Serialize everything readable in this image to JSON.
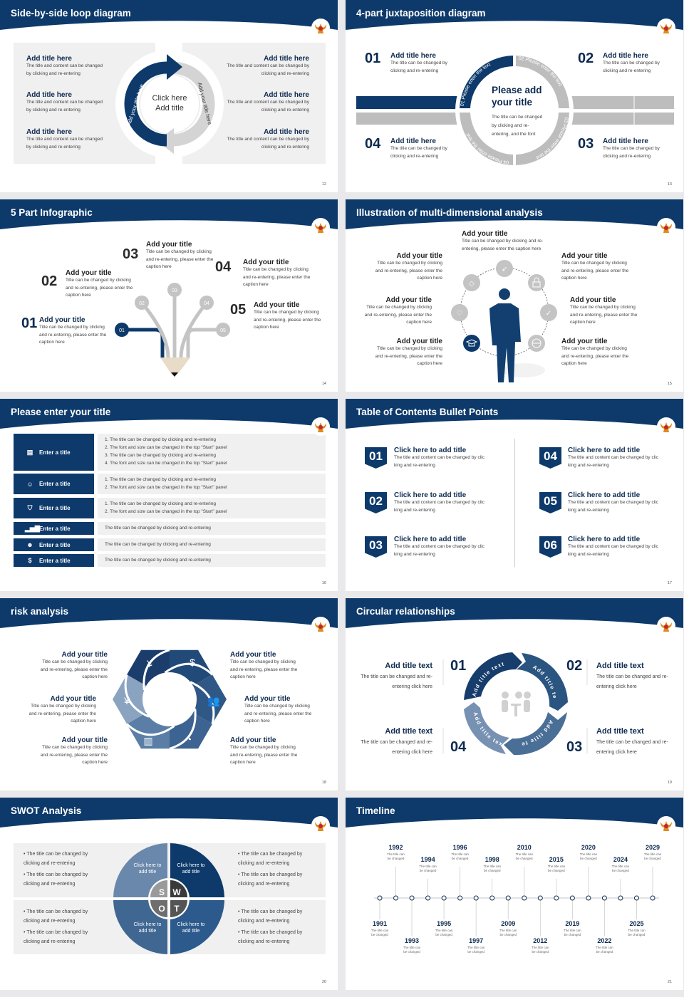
{
  "colors": {
    "navy": "#0d3a6b",
    "grey": "#bdbdbd",
    "panel": "#f0f0f0"
  },
  "loop": {
    "title": "Side-by-side loop diagram",
    "page": "12",
    "center": "Click here Add title",
    "arc_left": "Add your title here",
    "arc_right": "Add your title here",
    "items": [
      {
        "title": "Add title here",
        "body": "The title and content can be changed by clicking and re-entering"
      },
      {
        "title": "Add title here",
        "body": "The title and content can be changed by clicking and re-entering"
      },
      {
        "title": "Add title here",
        "body": "The title and content can be changed by clicking and re-entering"
      },
      {
        "title": "Add title here",
        "body": "The title and content can be changed by clicking and re-entering"
      },
      {
        "title": "Add title here",
        "body": "The title and content can be changed by clicking and re-entering"
      },
      {
        "title": "Add title here",
        "body": "The title and content can be changed by clicking and re-entering"
      }
    ]
  },
  "juxta": {
    "title": "4-part juxtaposition diagram",
    "page": "13",
    "center_title": "Please add your title",
    "center_body": "The title can be changed by clicking and re-entering, and the font",
    "ring": [
      "01 Please enter the text",
      "02 Please enter the text",
      "03 Please enter the text",
      "04 Please enter the text"
    ],
    "items": [
      {
        "num": "01",
        "title": "Add title here",
        "body": "The title can be changed by clicking and re-entering"
      },
      {
        "num": "02",
        "title": "Add title here",
        "body": "The title can be changed by clicking and re-entering"
      },
      {
        "num": "03",
        "title": "Add title here",
        "body": "The title can be changed by clicking and re-entering"
      },
      {
        "num": "04",
        "title": "Add title here",
        "body": "The title can be changed by clicking and re-entering"
      }
    ]
  },
  "five": {
    "title": "5 Part Infographic",
    "page": "14",
    "items": [
      {
        "num": "01",
        "title": "Add your title",
        "body": "Title can be changed by clicking and re-entering, please enter the caption here"
      },
      {
        "num": "02",
        "title": "Add your title",
        "body": "Title can be changed by clicking and re-entering, please enter the caption here"
      },
      {
        "num": "03",
        "title": "Add your title",
        "body": "Title can be changed by clicking and re-entering, please enter the caption here"
      },
      {
        "num": "04",
        "title": "Add your title",
        "body": "Title can be changed by clicking and re-entering, please enter the caption here"
      },
      {
        "num": "05",
        "title": "Add your title",
        "body": "Title can be changed by clicking and re-entering, please enter the caption here"
      }
    ]
  },
  "multi": {
    "title": "Illustration of multi-dimensional analysis",
    "page": "15",
    "top": {
      "title": "Add your title",
      "body": "Title can be changed by clicking and re-entering, please enter the caption here"
    },
    "items": [
      {
        "title": "Add your title",
        "body": "Title can be changed by clicking and re-entering, please enter the caption here"
      },
      {
        "title": "Add your title",
        "body": "Title can be changed by clicking and re-entering, please enter the caption here"
      },
      {
        "title": "Add your title",
        "body": "Title can be changed by clicking and re-entering, please enter the caption here"
      },
      {
        "title": "Add your title",
        "body": "Title can be changed by clicking and re-entering, please enter the caption here"
      },
      {
        "title": "Add your title",
        "body": "Title can be changed by clicking and re-entering, please enter the caption here"
      },
      {
        "title": "Add your title",
        "body": "Title can be changed by clicking and re-entering, please enter the caption here"
      }
    ],
    "icons": [
      "rocket-icon",
      "lock-icon",
      "thumbs-up-icon",
      "globe-icon",
      "graduation-cap-icon",
      "heart-icon",
      "diamond-icon"
    ]
  },
  "list": {
    "title": "Please enter your title",
    "page": "16",
    "rows": [
      {
        "label": "Enter a title",
        "icon": "presentation-icon",
        "lines": [
          "1.   The title can be changed by clicking and re-entering",
          "2.   The font and size can be changed in the top \"Start\" panel",
          "3.   The title can be changed by clicking and re-entering",
          "4.   The font and size can be changed in the top \"Start\" panel"
        ]
      },
      {
        "label": "Enter a title",
        "icon": "team-icon",
        "lines": [
          "1.   The title can be changed by clicking and re-entering",
          "2.   The font and size can be changed in the top \"Start\" panel"
        ]
      },
      {
        "label": "Enter a title",
        "icon": "shield-icon",
        "lines": [
          "1.   The title can be changed by clicking and re-entering",
          "2.   The font and size can be changed in the top \"Start\" panel"
        ]
      },
      {
        "label": "Enter a title",
        "icon": "bar-chart-icon",
        "lines": [
          "The title can be changed by clicking and re-entering"
        ]
      },
      {
        "label": "Enter a title",
        "icon": "group-icon",
        "lines": [
          "The title can be changed by clicking and re-entering"
        ]
      },
      {
        "label": "Enter a title",
        "icon": "money-hand-icon",
        "lines": [
          "The title can be changed by clicking and re-entering"
        ]
      }
    ]
  },
  "toc": {
    "title": "Table of Contents Bullet Points",
    "page": "17",
    "items": [
      {
        "num": "01",
        "title": "Click here to add title",
        "body": "The title and content can be changed by clic king and re-entering"
      },
      {
        "num": "02",
        "title": "Click here to add title",
        "body": "The title and content can be changed by clic king and re-entering"
      },
      {
        "num": "03",
        "title": "Click here to add title",
        "body": "The title and content can be changed by clic king and re-entering"
      },
      {
        "num": "04",
        "title": "Click here to add title",
        "body": "The title and content can be changed by clic king and re-entering"
      },
      {
        "num": "05",
        "title": "Click here to add title",
        "body": "The title and content can be changed by clic king and re-entering"
      },
      {
        "num": "06",
        "title": "Click here to add title",
        "body": "The title and content can be changed by clic king and re-entering"
      }
    ]
  },
  "risk": {
    "title": "risk analysis",
    "page": "18",
    "items": [
      {
        "title": "Add your title",
        "body": "Title can be changed by clicking and re-entering, please enter the caption here"
      },
      {
        "title": "Add your title",
        "body": "Title can be changed by clicking and re-entering, please enter the caption here"
      },
      {
        "title": "Add your title",
        "body": "Title can be changed by clicking and re-entering, please enter the caption here"
      },
      {
        "title": "Add your title",
        "body": "Title can be changed by clicking and re-entering, please enter the caption here"
      },
      {
        "title": "Add your title",
        "body": "Title can be changed by clicking and re-entering, please enter the caption here"
      },
      {
        "title": "Add your title",
        "body": "Title can be changed by clicking and re-entering, please enter the caption here"
      }
    ],
    "segments": [
      {
        "icon": "money-bag-icon",
        "glyph": "¥",
        "color": "#1b3d6c"
      },
      {
        "icon": "coins-icon",
        "glyph": "$",
        "color": "#224a79"
      },
      {
        "icon": "people-icon",
        "glyph": "👥",
        "color": "#2f5886"
      },
      {
        "icon": "pie-chart-icon",
        "glyph": "◔",
        "color": "#3c6391"
      },
      {
        "icon": "building-icon",
        "glyph": "▥",
        "color": "#5a7ea6"
      },
      {
        "icon": "hand-coin-icon",
        "glyph": "¥",
        "color": "#8aa3c0"
      }
    ]
  },
  "circular": {
    "title": "Circular relationships",
    "page": "19",
    "segment_label": "Add title text",
    "items": [
      {
        "num": "01",
        "title": "Add title text",
        "body": "The title can be changed and re-entering click here"
      },
      {
        "num": "02",
        "title": "Add title text",
        "body": "The title can be changed and re-entering click here"
      },
      {
        "num": "03",
        "title": "Add title text",
        "body": "The title can be changed and re-entering click here"
      },
      {
        "num": "04",
        "title": "Add title text",
        "body": "The title can be changed and re-entering click here"
      }
    ]
  },
  "swot": {
    "title": "SWOT Analysis",
    "page": "20",
    "letters": [
      "S",
      "W",
      "O",
      "T"
    ],
    "quadrant_label": "Click here to add title",
    "bullet": "The title can be changed by clicking and re-entering"
  },
  "timeline": {
    "title": "Timeline",
    "page": "21",
    "caption": "The title can be changed",
    "events": [
      "1991",
      "1992",
      "1993",
      "1994",
      "1995",
      "1996",
      "1997",
      "1998",
      "2009",
      "2010",
      "2012",
      "2015",
      "2019",
      "2020",
      "2022",
      "2024",
      "2025",
      "2029"
    ]
  }
}
